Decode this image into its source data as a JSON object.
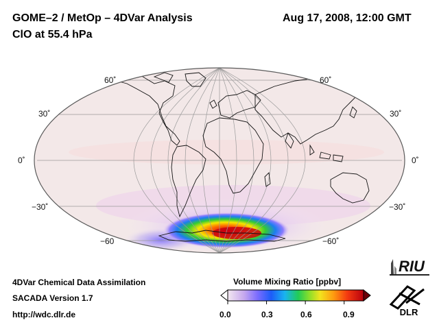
{
  "header": {
    "title": "GOME–2 / MetOp – 4DVar Analysis",
    "subtitle": "ClO at 55.4 hPa",
    "datetime": "Aug 17, 2008, 12:00 GMT"
  },
  "map": {
    "projection": "Hammer-Aitoff",
    "lat_labels": {
      "n60_left": "60˚",
      "n60_right": "60˚",
      "n30_left": "30˚",
      "n30_right": "30˚",
      "eq_left": "0˚",
      "eq_right": "0˚",
      "s30_left": "−30˚",
      "s30_right": "−30˚",
      "s60_left": "−60",
      "s60_right": "−60˚"
    }
  },
  "footer": {
    "line1": "4DVar Chemical Data Assimilation",
    "line2": "SACADA Version 1.7",
    "line3": "http://wdc.dlr.de"
  },
  "colorbar": {
    "title": "Volume Mixing Ratio [ppbv]",
    "ticks": [
      "0.0",
      "0.3",
      "0.6",
      "0.9"
    ],
    "min": 0.0,
    "max": 1.05
  },
  "logos": {
    "riu": "RIU",
    "dlr": "DLR"
  },
  "colors": {
    "map_background": "#f3e8e8",
    "ocean_outline": "#444444",
    "high": "#d0101a"
  }
}
